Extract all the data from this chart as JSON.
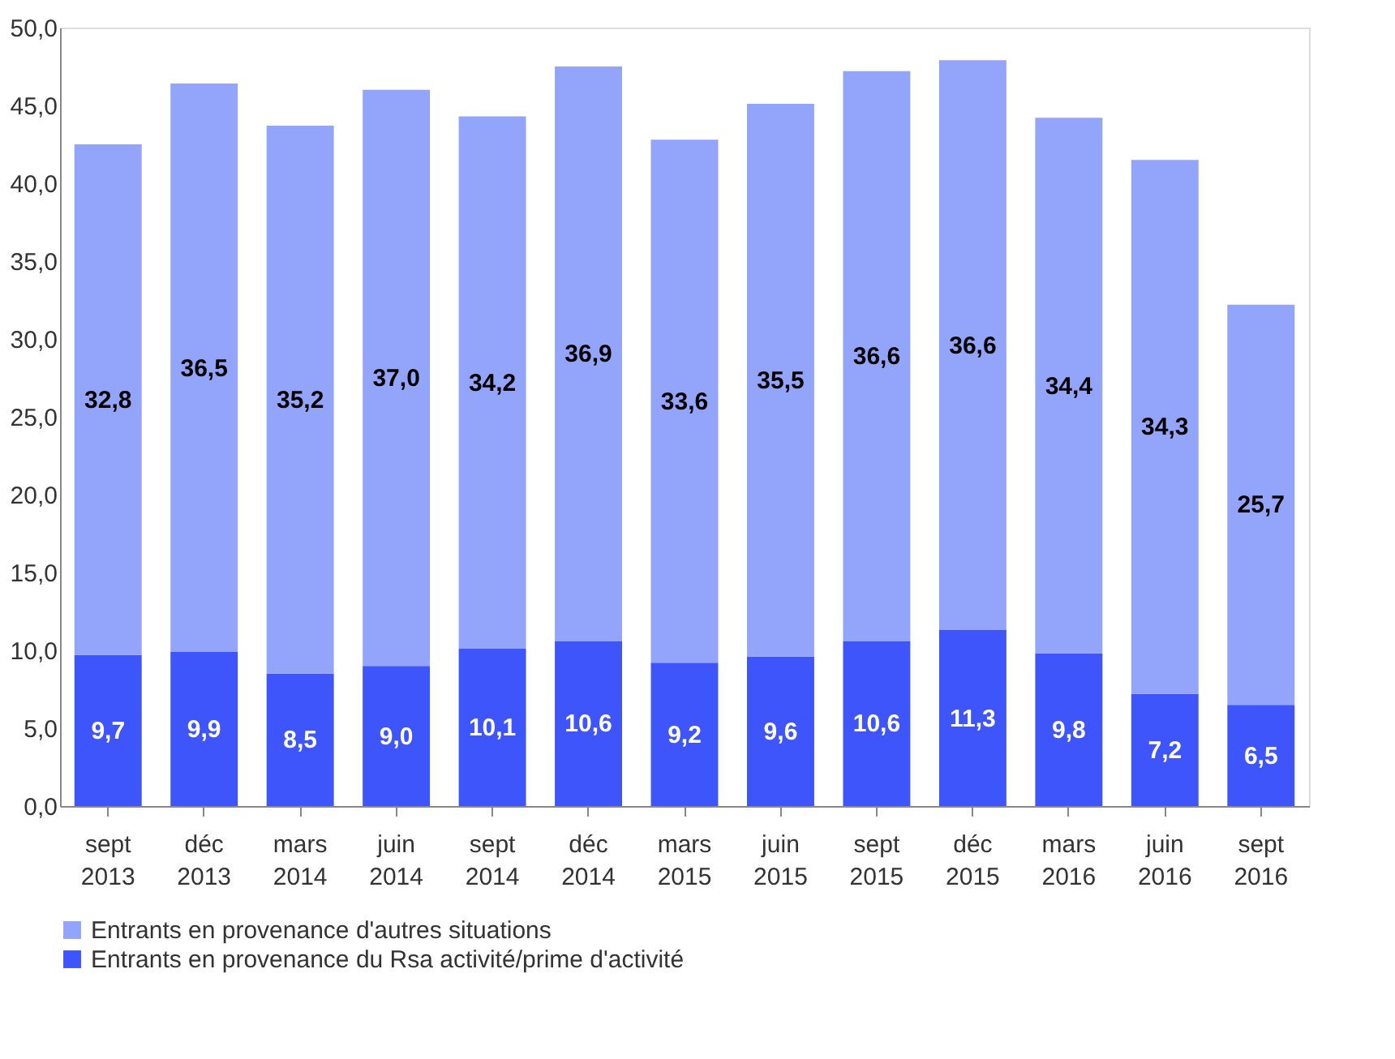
{
  "chart_data": {
    "type": "bar",
    "stacked": true,
    "categories": [
      "sept 2013",
      "déc 2013",
      "mars 2014",
      "juin 2014",
      "sept 2014",
      "déc 2014",
      "mars 2015",
      "juin 2015",
      "sept 2015",
      "déc 2015",
      "mars 2016",
      "juin 2016",
      "sept 2016"
    ],
    "series": [
      {
        "name": "Entrants en provenance du Rsa activité/prime d'activité",
        "color": "#3d55fb",
        "values": [
          9.7,
          9.9,
          8.5,
          9.0,
          10.1,
          10.6,
          9.2,
          9.6,
          10.6,
          11.3,
          9.8,
          7.2,
          6.5
        ],
        "value_labels": [
          "9,7",
          "9,9",
          "8,5",
          "9,0",
          "10,1",
          "10,6",
          "9,2",
          "9,6",
          "10,6",
          "11,3",
          "9,8",
          "7,2",
          "6,5"
        ]
      },
      {
        "name": "Entrants en provenance d'autres situations",
        "color": "#93a5fb",
        "values": [
          32.8,
          36.5,
          35.2,
          37.0,
          34.2,
          36.9,
          33.6,
          35.5,
          36.6,
          36.6,
          34.4,
          34.3,
          25.7
        ],
        "value_labels": [
          "32,8",
          "36,5",
          "35,2",
          "37,0",
          "34,2",
          "36,9",
          "33,6",
          "35,5",
          "36,6",
          "36,6",
          "34,4",
          "34,3",
          "25,7"
        ]
      }
    ],
    "ylim": [
      0,
      50
    ],
    "yticks": [
      {
        "value": 0,
        "label": "0,0"
      },
      {
        "value": 5,
        "label": "5,0"
      },
      {
        "value": 10,
        "label": "10,0"
      },
      {
        "value": 15,
        "label": "15,0"
      },
      {
        "value": 20,
        "label": "20,0"
      },
      {
        "value": 25,
        "label": "25,0"
      },
      {
        "value": 30,
        "label": "30,0"
      },
      {
        "value": 35,
        "label": "35,0"
      },
      {
        "value": 40,
        "label": "40,0"
      },
      {
        "value": 45,
        "label": "45,0"
      },
      {
        "value": 50,
        "label": "50,0"
      }
    ],
    "legend": "bottom",
    "grid": false
  }
}
